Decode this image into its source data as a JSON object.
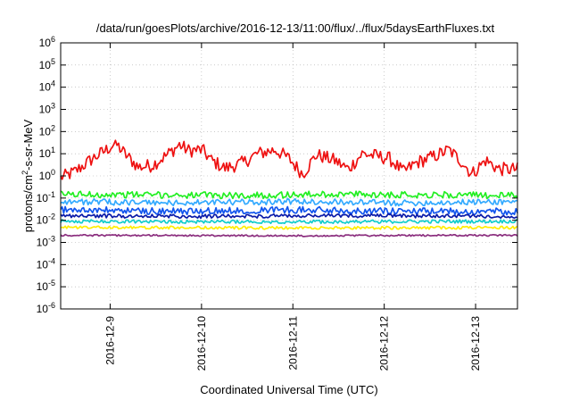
{
  "chart_data": {
    "type": "line",
    "title": "/data/run/goesPlots/archive/2016-12-13/11:00/flux/../flux/5daysEarthFluxes.txt",
    "xlabel": "Coordinated Universal Time (UTC)",
    "ylabel_prefix": "protons/cm",
    "ylabel_sup": "2",
    "ylabel_suffix": "-s-sr-MeV",
    "y_scale": "log",
    "ylim": [
      1e-06,
      1000000.0
    ],
    "y_ticks": [
      {
        "base": "10",
        "exp": "-6"
      },
      {
        "base": "10",
        "exp": "-5"
      },
      {
        "base": "10",
        "exp": "-4"
      },
      {
        "base": "10",
        "exp": "-3"
      },
      {
        "base": "10",
        "exp": "-2"
      },
      {
        "base": "10",
        "exp": "-1"
      },
      {
        "base": "10",
        "exp": "0"
      },
      {
        "base": "10",
        "exp": "1"
      },
      {
        "base": "10",
        "exp": "2"
      },
      {
        "base": "10",
        "exp": "3"
      },
      {
        "base": "10",
        "exp": "4"
      },
      {
        "base": "10",
        "exp": "5"
      },
      {
        "base": "10",
        "exp": "6"
      }
    ],
    "xlim": [
      "2016-12-08T11:00",
      "2016-12-13T11:00"
    ],
    "x_ticks": [
      "2016-12-9",
      "2016-12-10",
      "2016-12-11",
      "2016-12-12",
      "2016-12-13"
    ],
    "grid": true,
    "series": [
      {
        "color": "#ee1111",
        "min": 0.7,
        "max": 40,
        "anchors": [
          [
            0,
            0.8
          ],
          [
            0.03,
            1.5
          ],
          [
            0.07,
            6
          ],
          [
            0.1,
            15
          ],
          [
            0.12,
            30
          ],
          [
            0.14,
            10
          ],
          [
            0.17,
            2.5
          ],
          [
            0.2,
            3
          ],
          [
            0.23,
            8
          ],
          [
            0.26,
            25
          ],
          [
            0.28,
            14
          ],
          [
            0.31,
            15
          ],
          [
            0.33,
            5
          ],
          [
            0.36,
            2.2
          ],
          [
            0.4,
            4
          ],
          [
            0.43,
            10
          ],
          [
            0.47,
            15
          ],
          [
            0.5,
            6
          ],
          [
            0.53,
            1.2
          ],
          [
            0.56,
            9
          ],
          [
            0.6,
            5
          ],
          [
            0.63,
            2
          ],
          [
            0.66,
            10
          ],
          [
            0.69,
            8
          ],
          [
            0.72,
            6
          ],
          [
            0.75,
            1.5
          ],
          [
            0.78,
            4
          ],
          [
            0.82,
            8
          ],
          [
            0.85,
            15
          ],
          [
            0.88,
            4
          ],
          [
            0.9,
            1.2
          ],
          [
            0.93,
            5
          ],
          [
            0.96,
            2
          ],
          [
            1,
            2
          ]
        ]
      },
      {
        "color": "#22ee22",
        "min": 0.05,
        "max": 0.35,
        "anchors": [
          [
            0,
            0.15
          ],
          [
            0.2,
            0.14
          ],
          [
            0.4,
            0.13
          ],
          [
            0.6,
            0.15
          ],
          [
            0.8,
            0.14
          ],
          [
            1,
            0.13
          ]
        ]
      },
      {
        "color": "#33aaff",
        "min": 0.02,
        "max": 0.12,
        "anchors": [
          [
            0,
            0.07
          ],
          [
            0.25,
            0.06
          ],
          [
            0.5,
            0.07
          ],
          [
            0.75,
            0.06
          ],
          [
            1,
            0.07
          ]
        ]
      },
      {
        "color": "#1155ee",
        "min": 0.008,
        "max": 0.06,
        "anchors": [
          [
            0,
            0.03
          ],
          [
            0.25,
            0.025
          ],
          [
            0.5,
            0.03
          ],
          [
            0.75,
            0.025
          ],
          [
            1,
            0.025
          ]
        ]
      },
      {
        "color": "#0a1aa8",
        "min": 0.008,
        "max": 0.025,
        "anchors": [
          [
            0,
            0.016
          ],
          [
            0.3,
            0.015
          ],
          [
            0.6,
            0.016
          ],
          [
            1,
            0.015
          ]
        ]
      },
      {
        "color": "#11cccc",
        "min": 0.005,
        "max": 0.014,
        "anchors": [
          [
            0,
            0.009
          ],
          [
            0.5,
            0.0085
          ],
          [
            1,
            0.009
          ]
        ]
      },
      {
        "color": "#ffee00",
        "min": 0.003,
        "max": 0.007,
        "anchors": [
          [
            0,
            0.0048
          ],
          [
            0.5,
            0.0045
          ],
          [
            1,
            0.0046
          ]
        ]
      },
      {
        "color": "#8b2e7e",
        "min": 0.0016,
        "max": 0.0026,
        "anchors": [
          [
            0,
            0.0021
          ],
          [
            0.5,
            0.002
          ],
          [
            1,
            0.0021
          ]
        ]
      }
    ]
  }
}
